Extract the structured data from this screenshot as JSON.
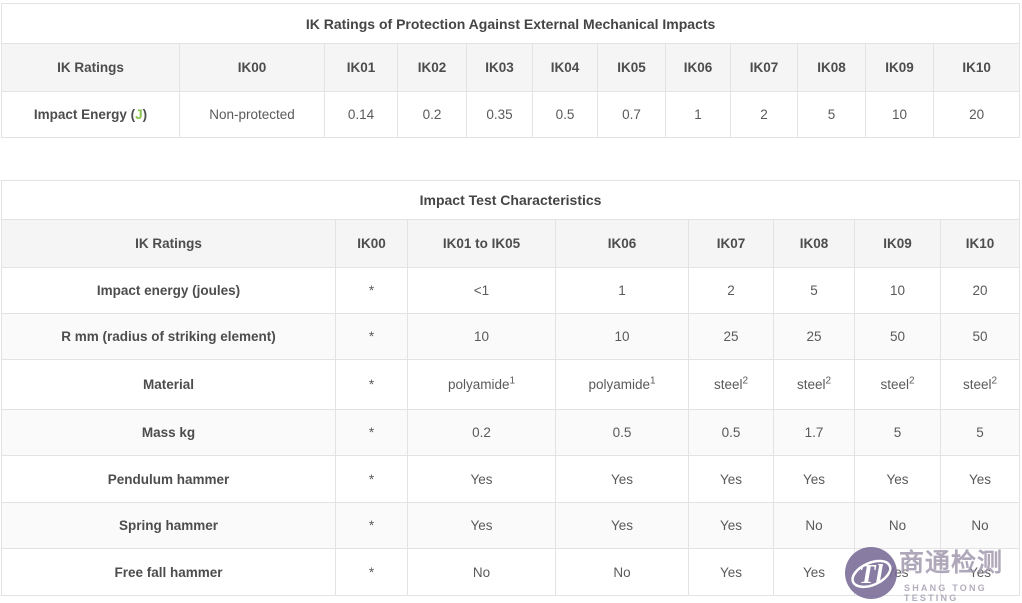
{
  "colors": {
    "green_unit": "#8bc34a",
    "watermark_purple": "#796b97"
  },
  "table1": {
    "title": "IK Ratings of Protection Against External Mechanical Impacts",
    "columns": [
      "IK Ratings",
      "IK00",
      "IK01",
      "IK02",
      "IK03",
      "IK04",
      "IK05",
      "IK06",
      "IK07",
      "IK08",
      "IK09",
      "IK10"
    ],
    "row": {
      "label_parts": [
        {
          "text": "Impact Energy ("
        },
        {
          "text": "J",
          "green": true
        },
        {
          "text": ")"
        }
      ],
      "values": [
        "Non-protected",
        "0.14",
        "0.2",
        "0.35",
        "0.5",
        "0.7",
        "1",
        "2",
        "5",
        "10",
        "20"
      ]
    }
  },
  "table2": {
    "title": "Impact Test Characteristics",
    "columns": [
      "IK Ratings",
      "IK00",
      "IK01 to IK05",
      "IK06",
      "IK07",
      "IK08",
      "IK09",
      "IK10"
    ],
    "rows": [
      {
        "label": "Impact energy (joules)",
        "values": [
          "*",
          "<1",
          "1",
          "2",
          "5",
          "10",
          "20"
        ]
      },
      {
        "label": "R mm (radius of striking element)",
        "values": [
          "*",
          "10",
          "10",
          "25",
          "25",
          "50",
          "50"
        ]
      },
      {
        "label": "Material",
        "values": [
          "*",
          "polyamide^1",
          "polyamide^1",
          "steel^2",
          "steel^2",
          "steel^2",
          "steel^2"
        ]
      },
      {
        "label": "Mass kg",
        "values": [
          "*",
          "0.2",
          "0.5",
          "0.5",
          "1.7",
          "5",
          "5"
        ]
      },
      {
        "label": "Pendulum hammer",
        "values": [
          "*",
          "Yes",
          "Yes",
          "Yes",
          "Yes",
          "Yes",
          "Yes"
        ]
      },
      {
        "label": "Spring hammer",
        "values": [
          "*",
          "Yes",
          "Yes",
          "Yes",
          "No",
          "No",
          "No"
        ]
      },
      {
        "label": "Free fall hammer",
        "values": [
          "*",
          "No",
          "No",
          "Yes",
          "Yes",
          "Yes",
          "Yes"
        ]
      }
    ]
  },
  "watermark": {
    "monogram": "Tl",
    "cjk": "商通检测",
    "latin": "SHANG TONG TESTING"
  }
}
